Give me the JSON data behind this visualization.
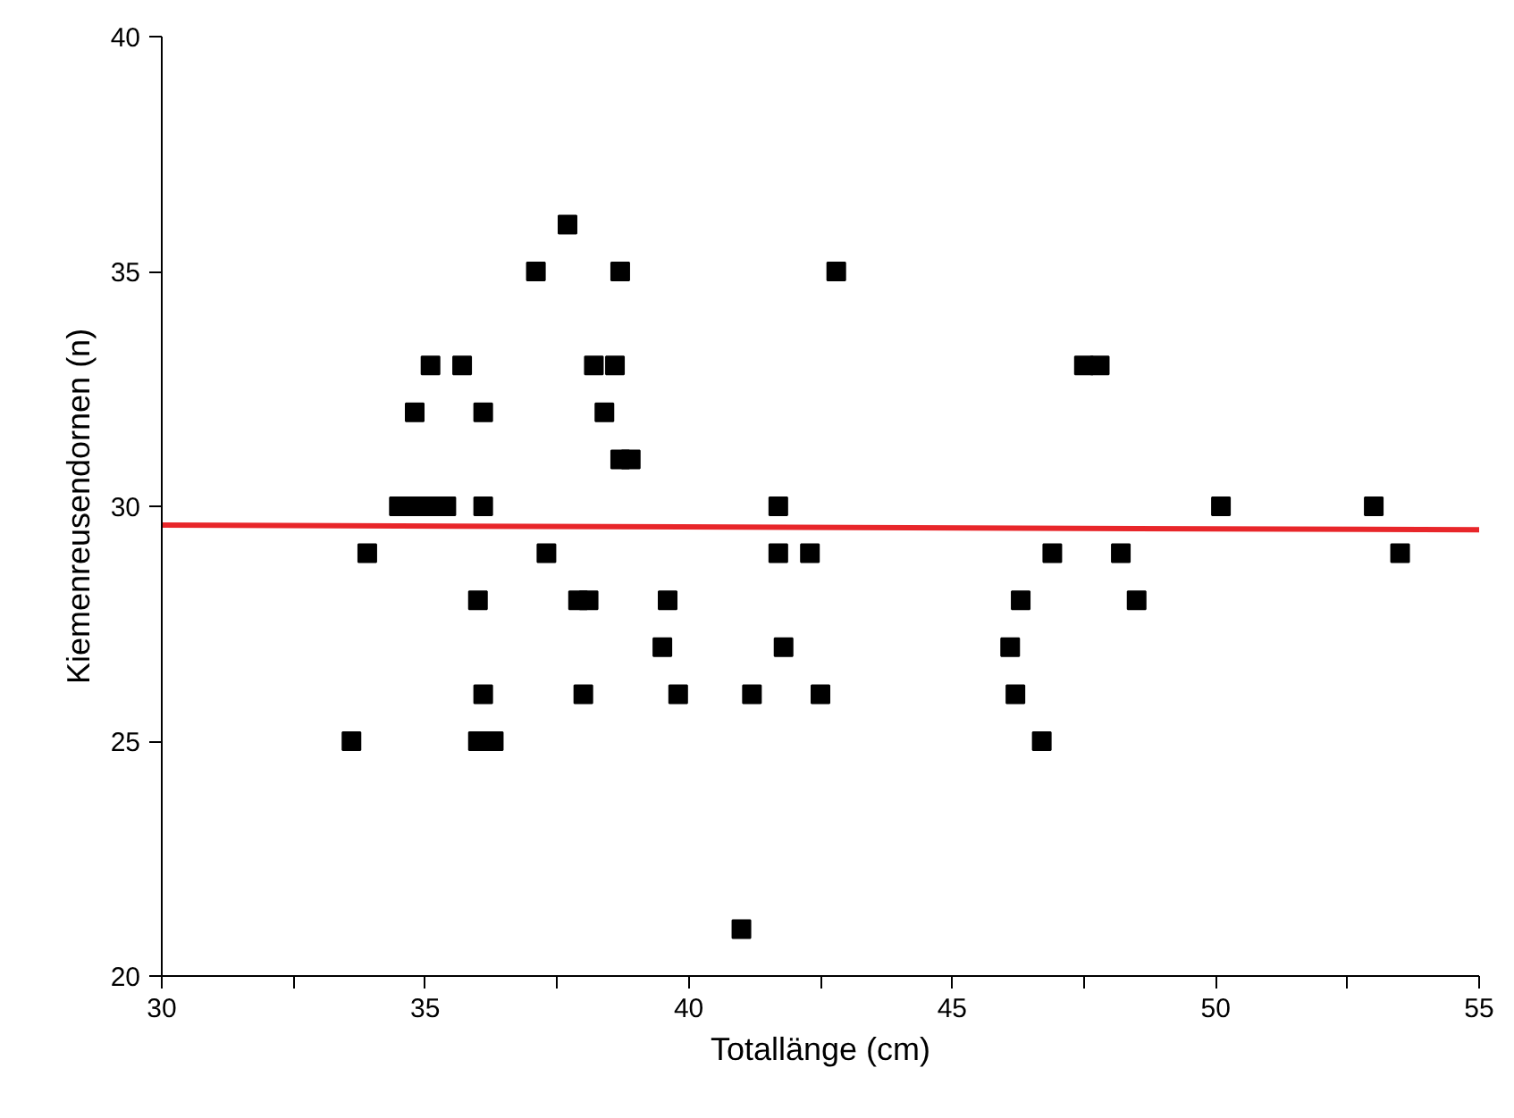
{
  "chart_data": {
    "type": "scatter",
    "xlabel": "Totallänge (cm)",
    "ylabel": "Kiemenreusendornen (n)",
    "xlim": [
      30,
      55
    ],
    "ylim": [
      20,
      40
    ],
    "xticks": [
      30,
      {
        "value": 32.5,
        "label": null
      },
      35,
      {
        "value": 37.5,
        "label": null
      },
      40,
      {
        "value": 42.5,
        "label": null
      },
      45,
      {
        "value": 47.5,
        "label": null
      },
      50,
      {
        "value": 52.5,
        "label": null
      },
      55
    ],
    "yticks": [
      20,
      25,
      30,
      35,
      40
    ],
    "grid": false,
    "marker": "square",
    "series": [
      {
        "color": "#000000",
        "x": [
          33.6,
          33.9,
          34.5,
          34.8,
          35.1,
          35.4,
          34.8,
          35.1,
          35.7,
          36.1,
          36.1,
          36.0,
          36.1,
          36.0,
          36.3,
          37.1,
          37.3,
          37.7,
          37.9,
          38.1,
          38.2,
          38.0,
          38.4,
          38.6,
          38.7,
          38.7,
          38.9,
          39.5,
          39.6,
          39.8,
          41.0,
          41.2,
          41.7,
          41.7,
          41.8,
          42.3,
          42.5,
          42.8,
          46.1,
          46.2,
          46.3,
          46.7,
          46.9,
          47.5,
          47.8,
          48.2,
          48.5,
          50.1,
          53.0,
          53.5
        ],
        "values": [
          25,
          29,
          30,
          30,
          30,
          30,
          32,
          33,
          33,
          32,
          30,
          28,
          26,
          25,
          25,
          35,
          29,
          36,
          28,
          28,
          33,
          26,
          32,
          33,
          35,
          31,
          31,
          27,
          28,
          26,
          21,
          26,
          30,
          29,
          27,
          29,
          26,
          35,
          27,
          26,
          28,
          25,
          29,
          33,
          33,
          29,
          28,
          30,
          30,
          29
        ]
      },
      {
        "type": "line",
        "color": "#e8262a",
        "x": [
          30,
          55
        ],
        "values": [
          29.6,
          29.5
        ],
        "marker": "none"
      }
    ]
  }
}
